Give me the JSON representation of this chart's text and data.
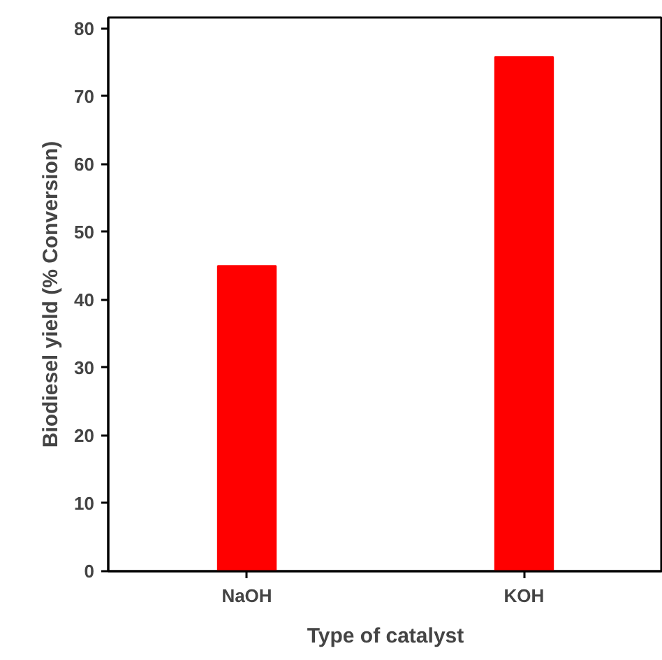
{
  "chart_data": {
    "type": "bar",
    "xlabel": "Type of catalyst",
    "ylabel": "Biodiesel yield (% Conversion)",
    "categories": [
      "NaOH",
      "KOH"
    ],
    "values": [
      45,
      75.8
    ],
    "color": "#ff0000",
    "ylim": [
      0,
      81.6
    ],
    "yticks": [
      0,
      10,
      20,
      30,
      40,
      50,
      60,
      70,
      80
    ],
    "grid": false
  }
}
